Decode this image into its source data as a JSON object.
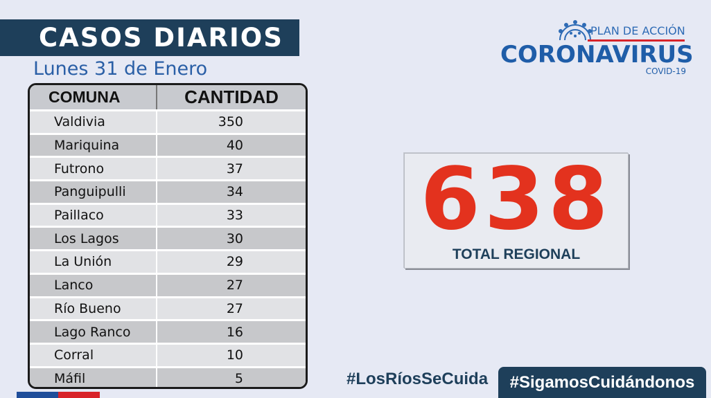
{
  "header": {
    "title": "CASOS DIARIOS",
    "date": "Lunes 31 de Enero"
  },
  "table": {
    "headers": [
      "COMUNA",
      "CANTIDAD"
    ],
    "rows": [
      {
        "comuna": "Valdivia",
        "cantidad": "350"
      },
      {
        "comuna": "Mariquina",
        "cantidad": "40"
      },
      {
        "comuna": "Futrono",
        "cantidad": "37"
      },
      {
        "comuna": "Panguipulli",
        "cantidad": "34"
      },
      {
        "comuna": "Paillaco",
        "cantidad": "33"
      },
      {
        "comuna": "Los Lagos",
        "cantidad": "30"
      },
      {
        "comuna": "La Unión",
        "cantidad": "29"
      },
      {
        "comuna": "Lanco",
        "cantidad": "27"
      },
      {
        "comuna": "Río Bueno",
        "cantidad": "27"
      },
      {
        "comuna": "Lago Ranco",
        "cantidad": "16"
      },
      {
        "comuna": "Corral",
        "cantidad": "10"
      },
      {
        "comuna": "Máfil",
        "cantidad": "5"
      }
    ]
  },
  "logo": {
    "plan": "PLAN DE ACCIÓN",
    "name": "CORONAVIRUS",
    "sub": "COVID-19",
    "icon": "virus-icon"
  },
  "total": {
    "value": "638",
    "label": "TOTAL REGIONAL"
  },
  "hashtags": {
    "primary": "#LosRíosSeCuida",
    "secondary": "#SigamosCuidándonos"
  },
  "colors": {
    "navy": "#1e3f5a",
    "accent_red": "#e3321e",
    "brand_blue": "#1f5da8",
    "background": "#e6e9f4"
  }
}
